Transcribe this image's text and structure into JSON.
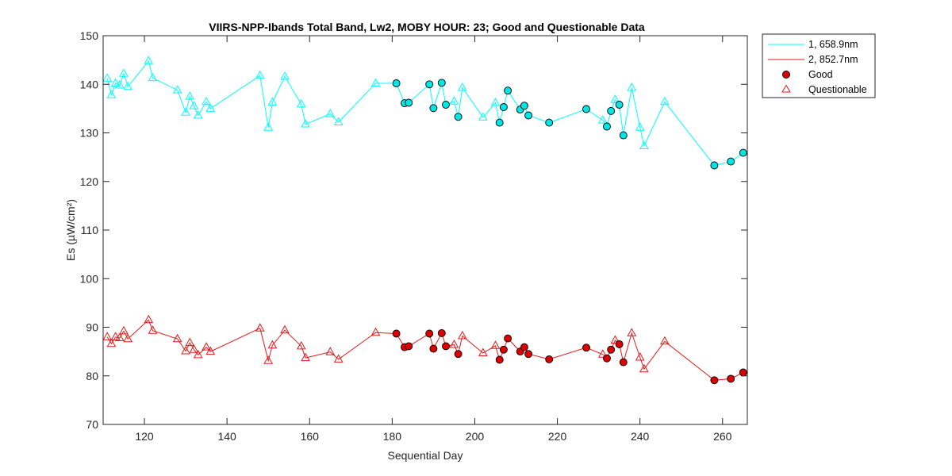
{
  "chart_data": {
    "type": "line",
    "title": "VIIRS-NPP-Ibands Total Band,  Lw2, MOBY HOUR: 23;  Good and Questionable Data",
    "xlabel": "Sequential Day",
    "ylabel": "Es (µW/cm²)",
    "xlim": [
      110,
      266
    ],
    "ylim": [
      70,
      150
    ],
    "xticks": [
      120,
      140,
      160,
      180,
      200,
      220,
      240,
      260
    ],
    "yticks": [
      70,
      80,
      90,
      100,
      110,
      120,
      130,
      140,
      150
    ],
    "grid": false,
    "legend_position": "outside-top-right",
    "legend": {
      "entries": [
        "1, 658.9nm",
        "2, 852.7nm",
        "Good",
        "Questionable"
      ]
    },
    "series": [
      {
        "name": "1, 658.9nm",
        "color": "#00ffff",
        "marker_fill": "#00e6e6",
        "points": [
          {
            "x": 111,
            "y": 141.2,
            "q": "Q"
          },
          {
            "x": 112,
            "y": 137.8,
            "q": "Q"
          },
          {
            "x": 113,
            "y": 140.2,
            "q": "Q"
          },
          {
            "x": 114,
            "y": 139.8,
            "q": "Q"
          },
          {
            "x": 115,
            "y": 142.2,
            "q": "Q"
          },
          {
            "x": 116,
            "y": 139.5,
            "q": "Q"
          },
          {
            "x": 121,
            "y": 144.8,
            "q": "Q"
          },
          {
            "x": 122,
            "y": 141.3,
            "q": "Q"
          },
          {
            "x": 128,
            "y": 138.8,
            "q": "Q"
          },
          {
            "x": 130,
            "y": 134.2,
            "q": "Q"
          },
          {
            "x": 131,
            "y": 137.5,
            "q": "Q"
          },
          {
            "x": 132,
            "y": 135.5,
            "q": "Q"
          },
          {
            "x": 133,
            "y": 133.6,
            "q": "Q"
          },
          {
            "x": 135,
            "y": 136.4,
            "q": "Q"
          },
          {
            "x": 136,
            "y": 135.0,
            "q": "Q"
          },
          {
            "x": 148,
            "y": 141.8,
            "q": "Q"
          },
          {
            "x": 150,
            "y": 131.1,
            "q": "Q"
          },
          {
            "x": 151,
            "y": 136.3,
            "q": "Q"
          },
          {
            "x": 154,
            "y": 141.6,
            "q": "Q"
          },
          {
            "x": 158,
            "y": 135.9,
            "q": "Q"
          },
          {
            "x": 159,
            "y": 131.8,
            "q": "Q"
          },
          {
            "x": 165,
            "y": 133.9,
            "q": "Q"
          },
          {
            "x": 167,
            "y": 132.2,
            "q": "Q"
          },
          {
            "x": 176,
            "y": 140.2,
            "q": "Q"
          },
          {
            "x": 181,
            "y": 140.2,
            "q": "G"
          },
          {
            "x": 183,
            "y": 136.1,
            "q": "G"
          },
          {
            "x": 184,
            "y": 136.2,
            "q": "G"
          },
          {
            "x": 189,
            "y": 140.0,
            "q": "G"
          },
          {
            "x": 190,
            "y": 135.1,
            "q": "G"
          },
          {
            "x": 192,
            "y": 140.3,
            "q": "G"
          },
          {
            "x": 193,
            "y": 135.8,
            "q": "G"
          },
          {
            "x": 195,
            "y": 136.5,
            "q": "Q"
          },
          {
            "x": 196,
            "y": 133.3,
            "q": "G"
          },
          {
            "x": 197,
            "y": 139.3,
            "q": "Q"
          },
          {
            "x": 202,
            "y": 133.2,
            "q": "Q"
          },
          {
            "x": 205,
            "y": 136.2,
            "q": "Q"
          },
          {
            "x": 206,
            "y": 132.1,
            "q": "G"
          },
          {
            "x": 207,
            "y": 135.3,
            "q": "G"
          },
          {
            "x": 208,
            "y": 138.7,
            "q": "G"
          },
          {
            "x": 211,
            "y": 134.8,
            "q": "G"
          },
          {
            "x": 212,
            "y": 135.6,
            "q": "G"
          },
          {
            "x": 213,
            "y": 133.6,
            "q": "G"
          },
          {
            "x": 218,
            "y": 132.1,
            "q": "G"
          },
          {
            "x": 227,
            "y": 134.9,
            "q": "G"
          },
          {
            "x": 231,
            "y": 132.6,
            "q": "Q"
          },
          {
            "x": 232,
            "y": 131.3,
            "q": "G"
          },
          {
            "x": 233,
            "y": 134.5,
            "q": "G"
          },
          {
            "x": 234,
            "y": 136.8,
            "q": "Q"
          },
          {
            "x": 235,
            "y": 135.8,
            "q": "G"
          },
          {
            "x": 236,
            "y": 129.5,
            "q": "G"
          },
          {
            "x": 238,
            "y": 139.3,
            "q": "Q"
          },
          {
            "x": 240,
            "y": 131.1,
            "q": "Q"
          },
          {
            "x": 241,
            "y": 127.3,
            "q": "Q"
          },
          {
            "x": 246,
            "y": 136.4,
            "q": "Q"
          },
          {
            "x": 258,
            "y": 123.3,
            "q": "G"
          },
          {
            "x": 262,
            "y": 124.1,
            "q": "G"
          },
          {
            "x": 265,
            "y": 125.9,
            "q": "G"
          }
        ]
      },
      {
        "name": "2, 852.7nm",
        "color": "#e61919",
        "marker_fill": "#dd0000",
        "points": [
          {
            "x": 111,
            "y": 88.0,
            "q": "Q"
          },
          {
            "x": 112,
            "y": 86.6,
            "q": "Q"
          },
          {
            "x": 113,
            "y": 88.0,
            "q": "Q"
          },
          {
            "x": 114,
            "y": 87.8,
            "q": "Q"
          },
          {
            "x": 115,
            "y": 89.2,
            "q": "Q"
          },
          {
            "x": 116,
            "y": 87.6,
            "q": "Q"
          },
          {
            "x": 121,
            "y": 91.5,
            "q": "Q"
          },
          {
            "x": 122,
            "y": 89.3,
            "q": "Q"
          },
          {
            "x": 128,
            "y": 87.6,
            "q": "Q"
          },
          {
            "x": 130,
            "y": 85.1,
            "q": "Q"
          },
          {
            "x": 131,
            "y": 86.8,
            "q": "Q"
          },
          {
            "x": 132,
            "y": 85.4,
            "q": "Q"
          },
          {
            "x": 133,
            "y": 84.3,
            "q": "Q"
          },
          {
            "x": 135,
            "y": 85.9,
            "q": "Q"
          },
          {
            "x": 136,
            "y": 85.0,
            "q": "Q"
          },
          {
            "x": 148,
            "y": 89.8,
            "q": "Q"
          },
          {
            "x": 150,
            "y": 83.1,
            "q": "Q"
          },
          {
            "x": 151,
            "y": 86.3,
            "q": "Q"
          },
          {
            "x": 154,
            "y": 89.4,
            "q": "Q"
          },
          {
            "x": 158,
            "y": 86.1,
            "q": "Q"
          },
          {
            "x": 159,
            "y": 83.7,
            "q": "Q"
          },
          {
            "x": 165,
            "y": 84.9,
            "q": "Q"
          },
          {
            "x": 167,
            "y": 83.4,
            "q": "Q"
          },
          {
            "x": 176,
            "y": 88.9,
            "q": "Q"
          },
          {
            "x": 181,
            "y": 88.7,
            "q": "G"
          },
          {
            "x": 183,
            "y": 85.9,
            "q": "G"
          },
          {
            "x": 184,
            "y": 86.1,
            "q": "G"
          },
          {
            "x": 189,
            "y": 88.7,
            "q": "G"
          },
          {
            "x": 190,
            "y": 85.6,
            "q": "G"
          },
          {
            "x": 192,
            "y": 88.8,
            "q": "G"
          },
          {
            "x": 193,
            "y": 86.1,
            "q": "G"
          },
          {
            "x": 195,
            "y": 86.4,
            "q": "Q"
          },
          {
            "x": 196,
            "y": 84.5,
            "q": "G"
          },
          {
            "x": 197,
            "y": 88.2,
            "q": "Q"
          },
          {
            "x": 202,
            "y": 84.7,
            "q": "Q"
          },
          {
            "x": 205,
            "y": 86.2,
            "q": "Q"
          },
          {
            "x": 206,
            "y": 83.3,
            "q": "G"
          },
          {
            "x": 207,
            "y": 85.4,
            "q": "G"
          },
          {
            "x": 208,
            "y": 87.7,
            "q": "G"
          },
          {
            "x": 211,
            "y": 85.0,
            "q": "G"
          },
          {
            "x": 212,
            "y": 85.9,
            "q": "G"
          },
          {
            "x": 213,
            "y": 84.5,
            "q": "G"
          },
          {
            "x": 218,
            "y": 83.4,
            "q": "G"
          },
          {
            "x": 227,
            "y": 85.8,
            "q": "G"
          },
          {
            "x": 231,
            "y": 84.4,
            "q": "Q"
          },
          {
            "x": 232,
            "y": 83.6,
            "q": "G"
          },
          {
            "x": 233,
            "y": 85.4,
            "q": "G"
          },
          {
            "x": 234,
            "y": 87.3,
            "q": "Q"
          },
          {
            "x": 235,
            "y": 86.5,
            "q": "G"
          },
          {
            "x": 236,
            "y": 82.8,
            "q": "G"
          },
          {
            "x": 238,
            "y": 88.8,
            "q": "Q"
          },
          {
            "x": 240,
            "y": 83.8,
            "q": "Q"
          },
          {
            "x": 241,
            "y": 81.4,
            "q": "Q"
          },
          {
            "x": 246,
            "y": 87.1,
            "q": "Q"
          },
          {
            "x": 258,
            "y": 79.1,
            "q": "G"
          },
          {
            "x": 262,
            "y": 79.4,
            "q": "G"
          },
          {
            "x": 265,
            "y": 80.7,
            "q": "G"
          }
        ]
      }
    ]
  }
}
